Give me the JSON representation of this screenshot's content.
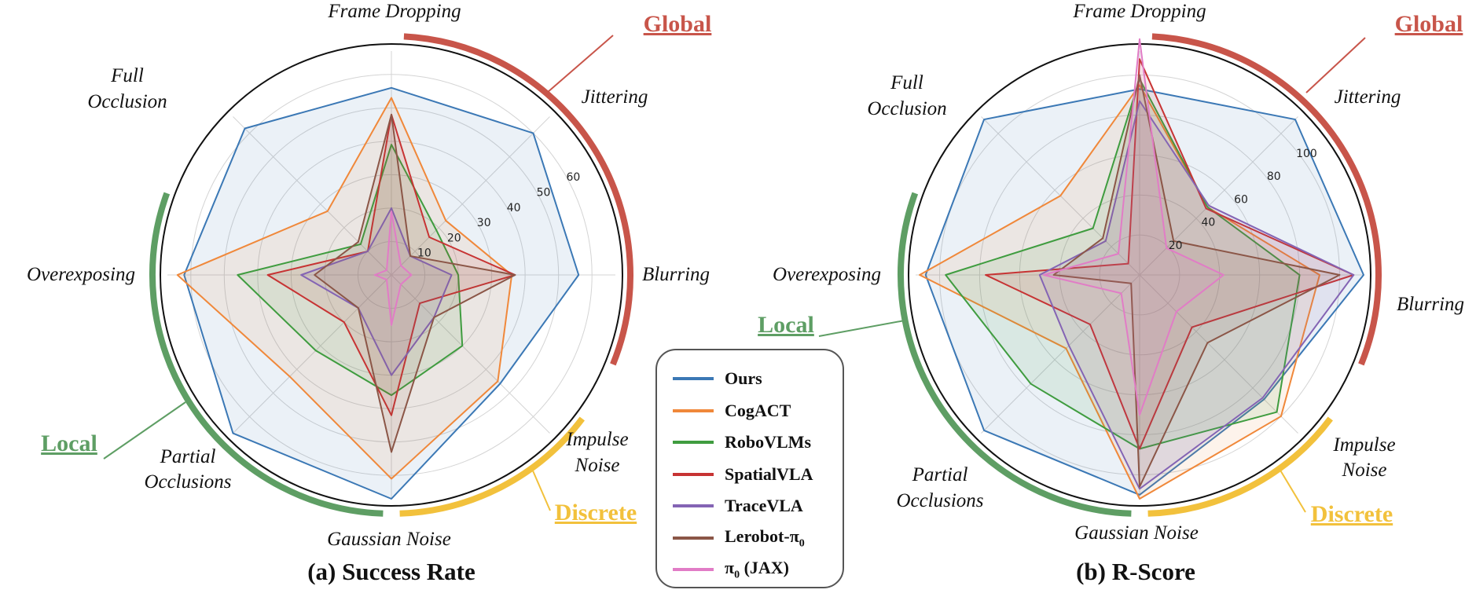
{
  "chart_data": [
    {
      "type": "radar",
      "title": "(a) Success Rate",
      "axes": [
        "Frame Dropping",
        "Jittering",
        "Blurring",
        "Impulse Noise",
        "Gaussian Noise",
        "Partial Occlusions",
        "Overexposing",
        "Full Occlusion"
      ],
      "axes_display": [
        [
          "Frame Dropping"
        ],
        [
          "Jittering"
        ],
        [
          "Blurring"
        ],
        [
          "Impulse",
          "Noise"
        ],
        [
          "Gaussian Noise"
        ],
        [
          "Partial",
          "Occlusions"
        ],
        [
          "Overexposing"
        ],
        [
          "Full",
          "Occlusion"
        ]
      ],
      "rmax": 67,
      "ticks": [
        10,
        20,
        30,
        40,
        50,
        60
      ],
      "series": [
        {
          "name": "Ours",
          "values": [
            56,
            60,
            56,
            46,
            67,
            67,
            62,
            62
          ]
        },
        {
          "name": "CogACT",
          "values": [
            53,
            23,
            36,
            45,
            61,
            43,
            64,
            27
          ]
        },
        {
          "name": "RoboVLMs",
          "values": [
            39,
            19,
            20,
            30,
            36,
            32,
            46,
            13
          ]
        },
        {
          "name": "SpatialVLA",
          "values": [
            48,
            16,
            37,
            12,
            42,
            20,
            37,
            10
          ]
        },
        {
          "name": "TraceVLA",
          "values": [
            20,
            8,
            18,
            18,
            30,
            14,
            27,
            10
          ]
        },
        {
          "name": "Lerobot-π0",
          "values": [
            48,
            8,
            37,
            18,
            53,
            14,
            23,
            14
          ]
        },
        {
          "name": "π0 (JAX)",
          "values": [
            19,
            4,
            6,
            4,
            15,
            2,
            5,
            2
          ]
        }
      ],
      "groups": [
        {
          "name": "Global",
          "color": "#c8554a"
        },
        {
          "name": "Discrete",
          "color": "#f2c13c"
        },
        {
          "name": "Local",
          "color": "#5e9e64"
        }
      ]
    },
    {
      "type": "radar",
      "title": "(b) R-Score",
      "axes": [
        "Frame Dropping",
        "Jittering",
        "Blurring",
        "Impulse Noise",
        "Gaussian Noise",
        "Partial Occlusions",
        "Overexposing",
        "Full Occlusion"
      ],
      "axes_display": [
        [
          "Frame Dropping"
        ],
        [
          "Jittering"
        ],
        [
          "Blurring"
        ],
        [
          "Impulse",
          "Noise"
        ],
        [
          "Gaussian Noise"
        ],
        [
          "Partial",
          "Occlusions"
        ],
        [
          "Overexposing"
        ],
        [
          "Full",
          "Occlusion"
        ]
      ],
      "rmax": 112,
      "ticks": [
        20,
        40,
        60,
        80,
        100
      ],
      "series": [
        {
          "name": "Ours",
          "values": [
            93,
            110,
            112,
            88,
            110,
            110,
            107,
            110
          ]
        },
        {
          "name": "CogACT",
          "values": [
            95,
            48,
            90,
            100,
            112,
            52,
            110,
            56
          ]
        },
        {
          "name": "RoboVLMs",
          "values": [
            98,
            48,
            80,
            97,
            87,
            77,
            97,
            33
          ]
        },
        {
          "name": "SpatialVLA",
          "values": [
            108,
            47,
            107,
            37,
            87,
            35,
            77,
            8
          ]
        },
        {
          "name": "TraceVLA",
          "values": [
            87,
            49,
            107,
            87,
            107,
            50,
            50,
            24
          ]
        },
        {
          "name": "Lerobot-π0",
          "values": [
            100,
            24,
            100,
            48,
            106,
            6,
            43,
            26
          ]
        },
        {
          "name": "π0 (JAX)",
          "values": [
            118,
            19,
            42,
            26,
            70,
            13,
            48,
            15
          ]
        }
      ]
    }
  ],
  "series_colors": [
    "#3b78b5",
    "#f0883a",
    "#3f9c3f",
    "#c73333",
    "#8464b4",
    "#8b5647",
    "#e17cc6"
  ],
  "legend": [
    {
      "name": "Ours",
      "base": "Ours",
      "sub": ""
    },
    {
      "name": "CogACT",
      "base": "CogACT",
      "sub": ""
    },
    {
      "name": "RoboVLMs",
      "base": "RoboVLMs",
      "sub": ""
    },
    {
      "name": "SpatialVLA",
      "base": "SpatialVLA",
      "sub": ""
    },
    {
      "name": "TraceVLA",
      "base": "TraceVLA",
      "sub": ""
    },
    {
      "name": "Lerobot-π0",
      "base": "Lerobot-π",
      "sub": "0",
      "suffix": ""
    },
    {
      "name": "π0 (JAX)",
      "base": "π",
      "sub": "0",
      "suffix": " (JAX)"
    }
  ],
  "group_labels": {
    "global": "Global",
    "discrete": "Discrete",
    "local": "Local"
  },
  "group_colors": {
    "global": "#c8554a",
    "discrete": "#f2c13c",
    "local": "#5e9e64"
  }
}
